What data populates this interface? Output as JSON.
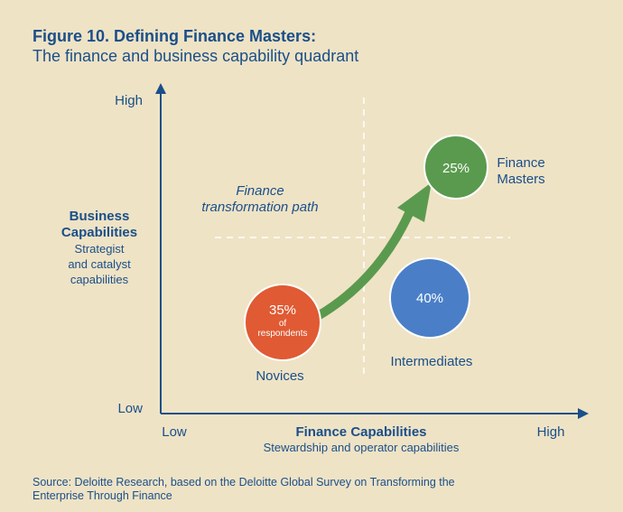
{
  "title": "Figure 10. Defining Finance Masters:",
  "subtitle": "The finance and business capability quadrant",
  "y_axis": {
    "high": "High",
    "low": "Low",
    "label": [
      "Business",
      "Capabilities"
    ],
    "sublabel": [
      "Strategist",
      "and catalyst",
      "capabilities"
    ]
  },
  "x_axis": {
    "low": "Low",
    "high": "High",
    "label": "Finance Capabilities",
    "sublabel": "Stewardship and operator capabilities"
  },
  "path_label": [
    "Finance",
    "transformation path"
  ],
  "nodes": [
    {
      "value": "35%",
      "note": [
        "of",
        "respondents"
      ],
      "label": [
        "Novices"
      ]
    },
    {
      "value": "40%",
      "label": [
        "Intermediates"
      ]
    },
    {
      "value": "25%",
      "label": [
        "Finance",
        "Masters"
      ]
    }
  ],
  "source": [
    "Source: Deloitte Research, based on the Deloitte Global Survey on Transforming the",
    "Enterprise Through Finance"
  ]
}
